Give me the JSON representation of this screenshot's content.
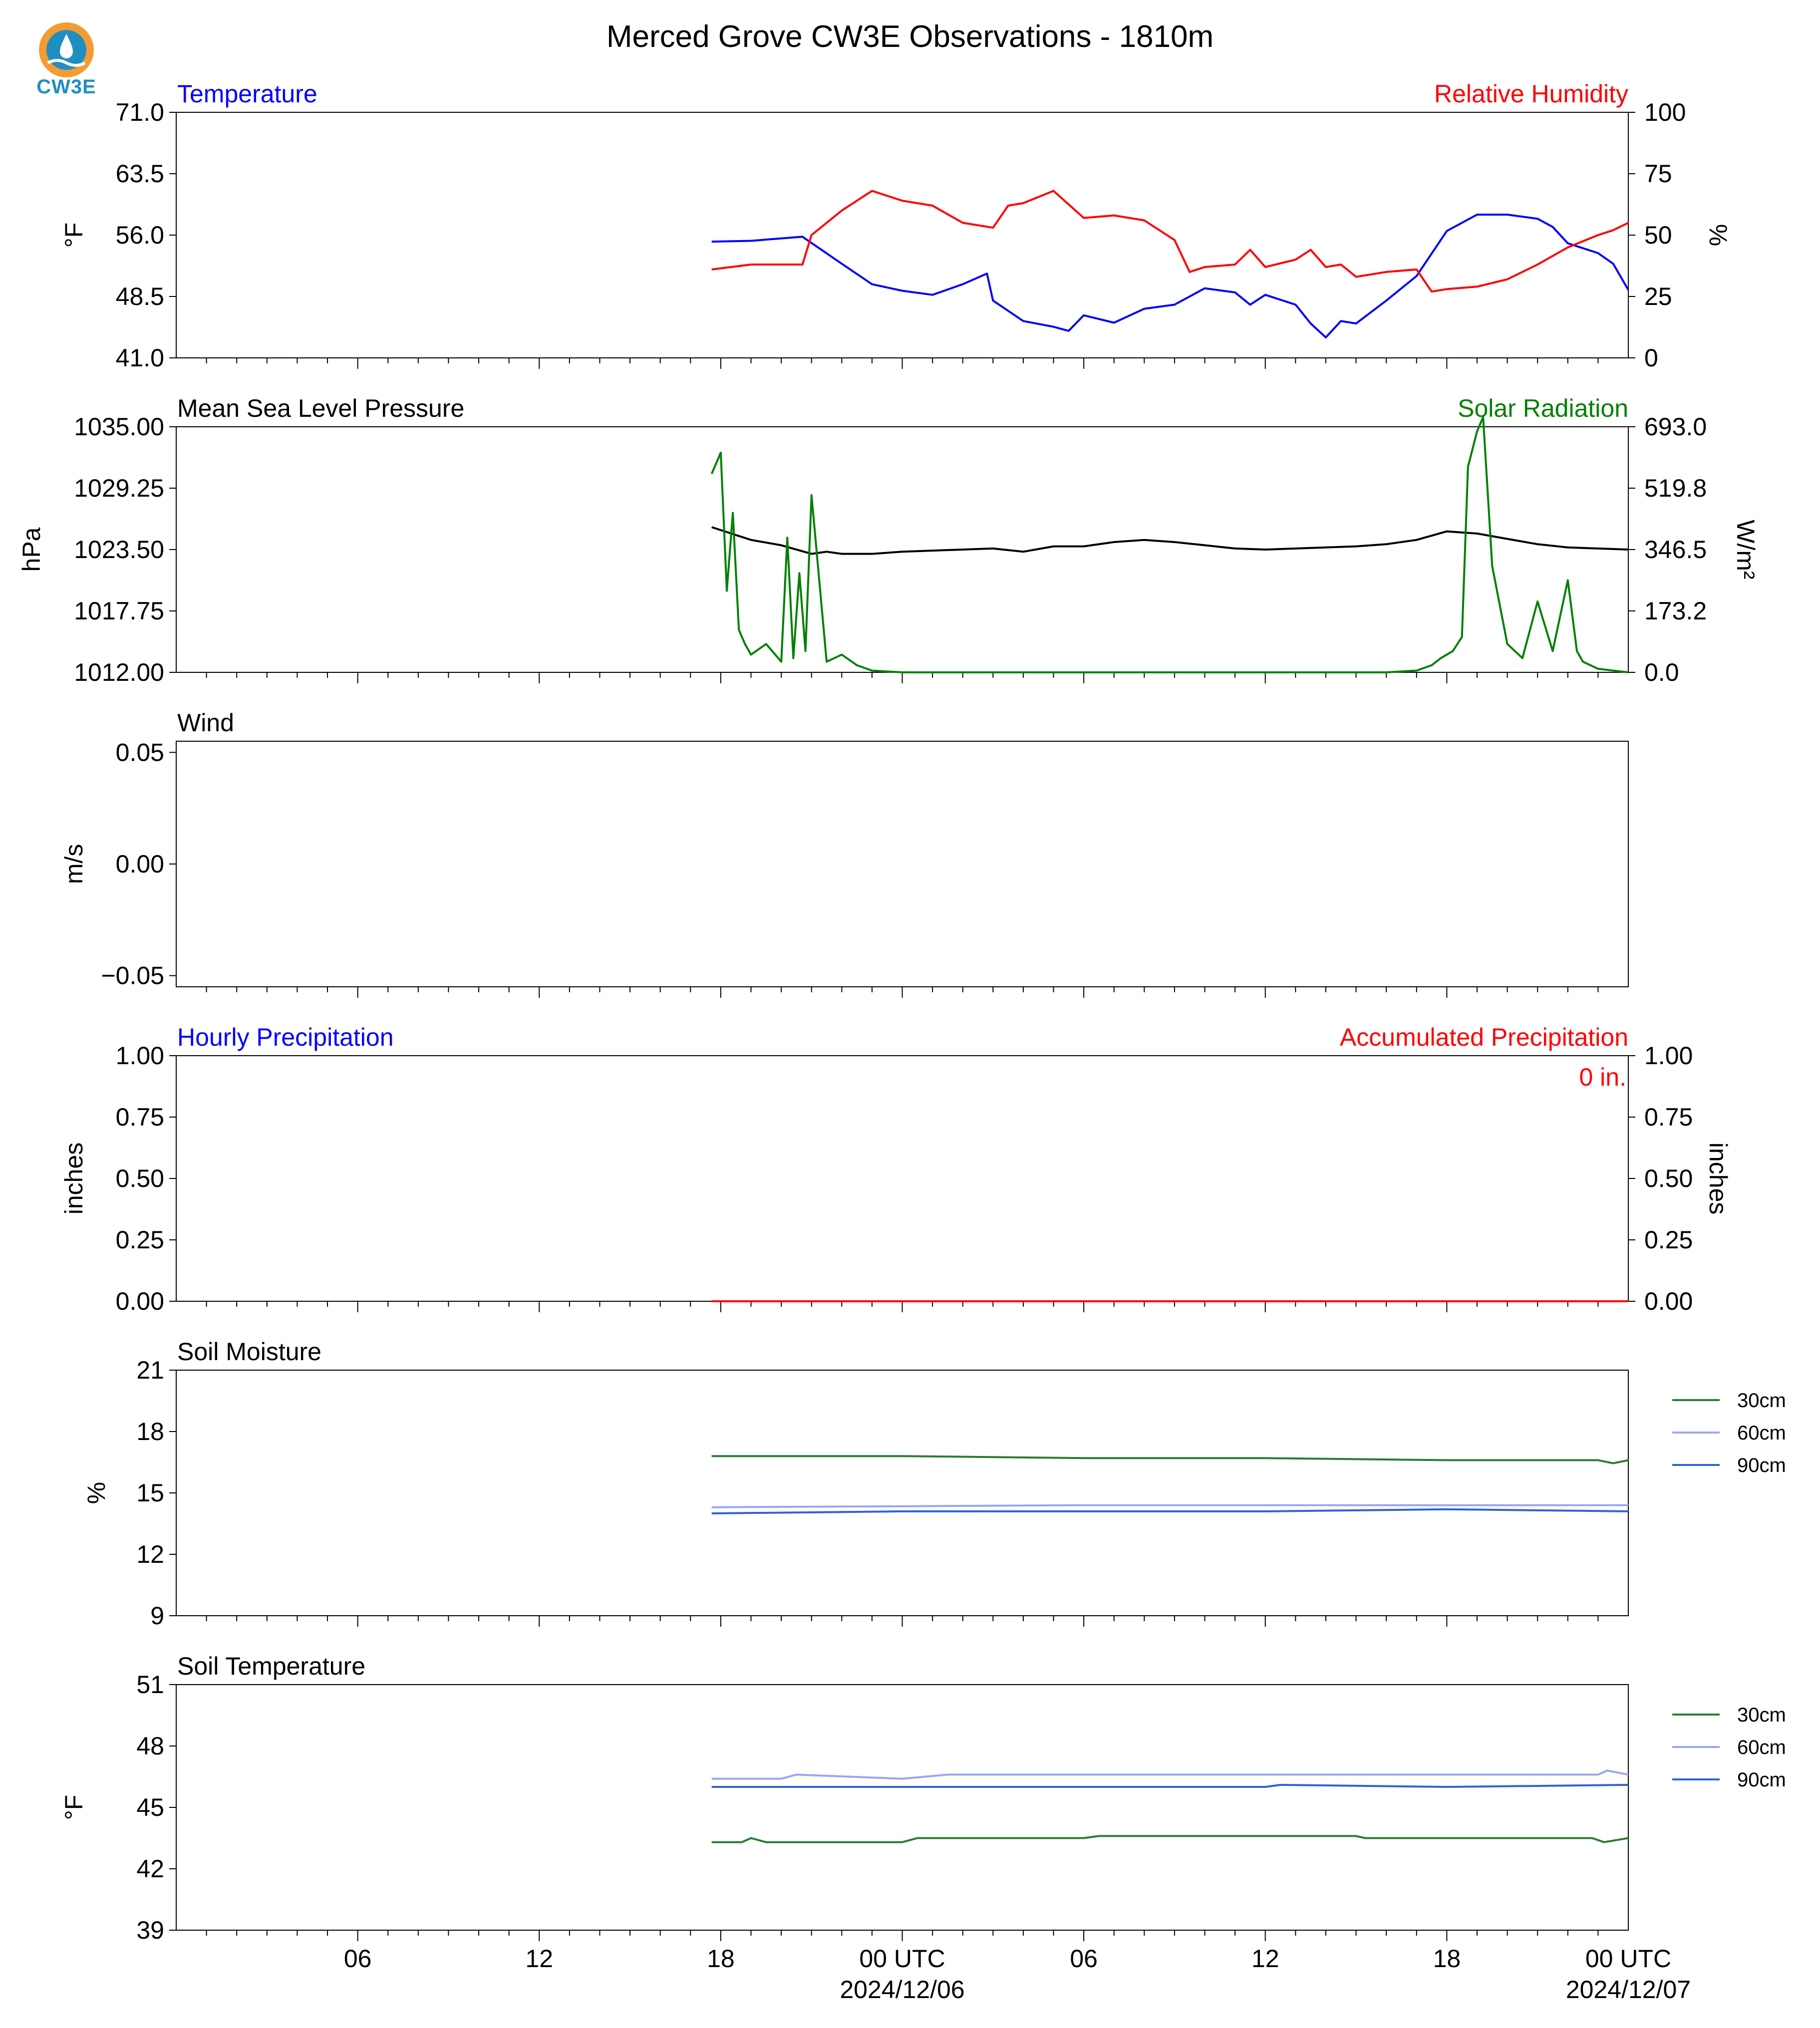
{
  "page": {
    "title": "Merced Grove CW3E Observations - 1810m"
  },
  "logo": {
    "text": "CW3E",
    "icon": "cw3e-drop-logo"
  },
  "colors": {
    "blue": "#0000ff",
    "red": "#ff0000",
    "green": "#008000",
    "black": "#000000",
    "soil30": "#2a7d2e",
    "soil60": "#9aa6f0",
    "soil90": "#2f63d8"
  },
  "x_axis": {
    "range_hours": [
      -24,
      24
    ],
    "major_ticks": [
      -18,
      -12,
      -6,
      0,
      6,
      12,
      18,
      24
    ],
    "tick_labels": [
      "06",
      "12",
      "18",
      "00 UTC",
      "06",
      "12",
      "18",
      "00 UTC"
    ],
    "date_labels": [
      "2024/12/06",
      "2024/12/07"
    ]
  },
  "chart_data": [
    {
      "type": "line",
      "panel": "temperature-humidity",
      "left_title": "Temperature",
      "right_title": "Relative Humidity",
      "ylabel": "$^\\circ$F",
      "y2label": "%",
      "ylim": [
        41.0,
        71.0
      ],
      "y2lim": [
        0,
        100
      ],
      "yticks": [
        "41.0",
        "48.5",
        "56.0",
        "63.5",
        "71.0"
      ],
      "y2ticks": [
        "0",
        "25",
        "50",
        "75",
        "100"
      ],
      "series": [
        {
          "name": "Temperature",
          "axis": "left",
          "color": "#0000ff",
          "x": [
            -6.3,
            -5,
            -4,
            -3.3,
            -2,
            -1,
            0,
            1,
            2,
            2.8,
            3,
            4,
            5,
            5.5,
            6,
            7,
            8,
            9,
            10,
            11,
            11.5,
            12,
            13,
            13.5,
            14,
            14.5,
            15,
            16,
            17,
            18,
            18.5,
            19,
            20,
            21,
            21.5,
            22,
            23,
            23.5,
            24
          ],
          "y": [
            55.2,
            55.3,
            55.6,
            55.8,
            52.5,
            50,
            49.2,
            48.7,
            50,
            51.3,
            48,
            45.5,
            44.8,
            44.3,
            46.2,
            45.3,
            47,
            47.5,
            49.5,
            49,
            47.5,
            48.7,
            47.5,
            45.2,
            43.5,
            45.5,
            45.2,
            48,
            51,
            56.5,
            57.5,
            58.5,
            58.5,
            58,
            57,
            55,
            53.8,
            52.5,
            49.3
          ]
        },
        {
          "name": "Relative Humidity",
          "axis": "right",
          "color": "#ff0000",
          "x": [
            -6.3,
            -5,
            -4,
            -3.3,
            -3,
            -2,
            -1,
            0,
            1,
            2,
            3,
            3.5,
            4,
            5,
            6,
            7,
            8,
            9,
            9.5,
            10,
            11,
            11.5,
            12,
            13,
            13.5,
            14,
            14.5,
            15,
            16,
            17,
            17.5,
            18,
            19,
            20,
            21,
            22,
            23,
            23.5,
            24
          ],
          "y": [
            36,
            38,
            38,
            38,
            50,
            60,
            68,
            64,
            62,
            55,
            53,
            62,
            63,
            68,
            57,
            58,
            56,
            48,
            35,
            37,
            38,
            44,
            37,
            40,
            44,
            37,
            38,
            33,
            35,
            36,
            27,
            28,
            29,
            32,
            38,
            45,
            50,
            52,
            55
          ]
        }
      ]
    },
    {
      "type": "line",
      "panel": "pressure-solar",
      "left_title": "Mean Sea Level Pressure",
      "right_title": "Solar Radiation",
      "ylabel": "hPa",
      "y2label": "W/m$^2$",
      "ylim": [
        1012.0,
        1035.0
      ],
      "y2lim": [
        0.0,
        693.0
      ],
      "yticks": [
        "1012.00",
        "1017.75",
        "1023.50",
        "1029.25",
        "1035.00"
      ],
      "y2ticks": [
        "0.0",
        "173.2",
        "346.5",
        "519.8",
        "693.0"
      ],
      "series": [
        {
          "name": "Mean Sea Level Pressure",
          "axis": "left",
          "color": "#000000",
          "x": [
            -6.3,
            -5,
            -4,
            -3,
            -2.5,
            -2,
            -1,
            0,
            1,
            2,
            3,
            4,
            5,
            6,
            7,
            8,
            9,
            10,
            11,
            12,
            13,
            14,
            15,
            16,
            17,
            18,
            19,
            20,
            21,
            22,
            23,
            24
          ],
          "y": [
            1025.6,
            1024.4,
            1023.9,
            1023.1,
            1023.3,
            1023.1,
            1023.1,
            1023.3,
            1023.4,
            1023.5,
            1023.6,
            1023.3,
            1023.8,
            1023.8,
            1024.2,
            1024.4,
            1024.2,
            1023.9,
            1023.6,
            1023.5,
            1023.6,
            1023.7,
            1023.8,
            1024.0,
            1024.4,
            1025.2,
            1025.0,
            1024.5,
            1024.0,
            1023.7,
            1023.6,
            1023.5
          ]
        },
        {
          "name": "Solar Radiation",
          "axis": "right",
          "color": "#008000",
          "x": [
            -6.3,
            -6,
            -5.8,
            -5.6,
            -5.4,
            -5.2,
            -5,
            -4.5,
            -4,
            -3.8,
            -3.6,
            -3.4,
            -3.2,
            -3,
            -2.5,
            -2,
            -1.5,
            -1,
            0,
            1,
            2,
            3,
            4,
            5,
            6,
            7,
            8,
            9,
            10,
            11,
            12,
            13,
            14,
            15,
            16,
            17,
            17.5,
            17.8,
            18.2,
            18.5,
            18.7,
            19,
            19.2,
            19.5,
            20,
            20.5,
            21,
            21.5,
            22,
            22.3,
            22.5,
            23,
            23.5,
            24
          ],
          "y": [
            560,
            620,
            230,
            450,
            120,
            80,
            50,
            80,
            30,
            380,
            40,
            280,
            60,
            500,
            30,
            50,
            20,
            5,
            0,
            0,
            0,
            0,
            0,
            0,
            0,
            0,
            0,
            0,
            0,
            0,
            0,
            0,
            0,
            0,
            0,
            5,
            20,
            40,
            60,
            100,
            580,
            680,
            720,
            300,
            80,
            40,
            200,
            60,
            260,
            60,
            30,
            10,
            5,
            0
          ]
        }
      ]
    },
    {
      "type": "line",
      "panel": "wind",
      "left_title": "Wind",
      "ylabel": "m/s",
      "ylim": [
        -0.055,
        0.055
      ],
      "yticks": [
        "−0.05",
        "0.00",
        "0.05"
      ],
      "series": []
    },
    {
      "type": "line",
      "panel": "precipitation",
      "left_title": "Hourly Precipitation",
      "right_title": "Accumulated Precipitation",
      "annotation": "0 in.",
      "ylabel": "inches",
      "y2label": "inches",
      "ylim": [
        0.0,
        1.0
      ],
      "y2lim": [
        0.0,
        1.0
      ],
      "yticks": [
        "0.00",
        "0.25",
        "0.50",
        "0.75",
        "1.00"
      ],
      "y2ticks": [
        "0.00",
        "0.25",
        "0.50",
        "0.75",
        "1.00"
      ],
      "series": [
        {
          "name": "Accumulated Precipitation",
          "axis": "right",
          "color": "#ff0000",
          "x": [
            -6.3,
            24
          ],
          "y": [
            0,
            0
          ]
        }
      ]
    },
    {
      "type": "line",
      "panel": "soil-moisture",
      "left_title": "Soil Moisture",
      "ylabel": "%",
      "ylim": [
        9,
        21
      ],
      "yticks": [
        "9",
        "12",
        "15",
        "18",
        "21"
      ],
      "legend": [
        "30cm",
        "60cm",
        "90cm"
      ],
      "series": [
        {
          "name": "30cm",
          "color": "#2a7d2e",
          "x": [
            -6.3,
            0,
            6,
            12,
            18,
            23,
            23.5,
            24
          ],
          "y": [
            16.8,
            16.8,
            16.7,
            16.7,
            16.6,
            16.6,
            16.45,
            16.6
          ]
        },
        {
          "name": "60cm",
          "color": "#9aa6f0",
          "x": [
            -6.3,
            0,
            6,
            12,
            18,
            24
          ],
          "y": [
            14.3,
            14.35,
            14.4,
            14.4,
            14.4,
            14.4
          ]
        },
        {
          "name": "90cm",
          "color": "#2f63d8",
          "x": [
            -6.3,
            0,
            6,
            12,
            18,
            24
          ],
          "y": [
            14.0,
            14.1,
            14.1,
            14.1,
            14.2,
            14.1
          ]
        }
      ]
    },
    {
      "type": "line",
      "panel": "soil-temperature",
      "left_title": "Soil Temperature",
      "ylabel": "$^\\circ$F",
      "ylim": [
        39,
        51
      ],
      "yticks": [
        "39",
        "42",
        "45",
        "48",
        "51"
      ],
      "legend": [
        "30cm",
        "60cm",
        "90cm"
      ],
      "series": [
        {
          "name": "30cm",
          "color": "#2a7d2e",
          "x": [
            -6.3,
            -5.3,
            -5,
            -4.5,
            0,
            0.5,
            6,
            6.5,
            15,
            15.3,
            22.8,
            23.2,
            24
          ],
          "y": [
            43.3,
            43.3,
            43.5,
            43.3,
            43.3,
            43.5,
            43.5,
            43.6,
            43.6,
            43.5,
            43.5,
            43.3,
            43.5
          ]
        },
        {
          "name": "60cm",
          "color": "#9aa6f0",
          "x": [
            -6.3,
            -4,
            -3.5,
            0,
            1.5,
            6,
            12,
            18,
            23,
            23.3,
            24
          ],
          "y": [
            46.4,
            46.4,
            46.6,
            46.4,
            46.6,
            46.6,
            46.6,
            46.6,
            46.6,
            46.8,
            46.6
          ]
        },
        {
          "name": "90cm",
          "color": "#2f63d8",
          "x": [
            -6.3,
            0,
            12,
            12.5,
            18,
            24
          ],
          "y": [
            46.0,
            46.0,
            46.0,
            46.1,
            46.0,
            46.1
          ]
        }
      ]
    }
  ]
}
